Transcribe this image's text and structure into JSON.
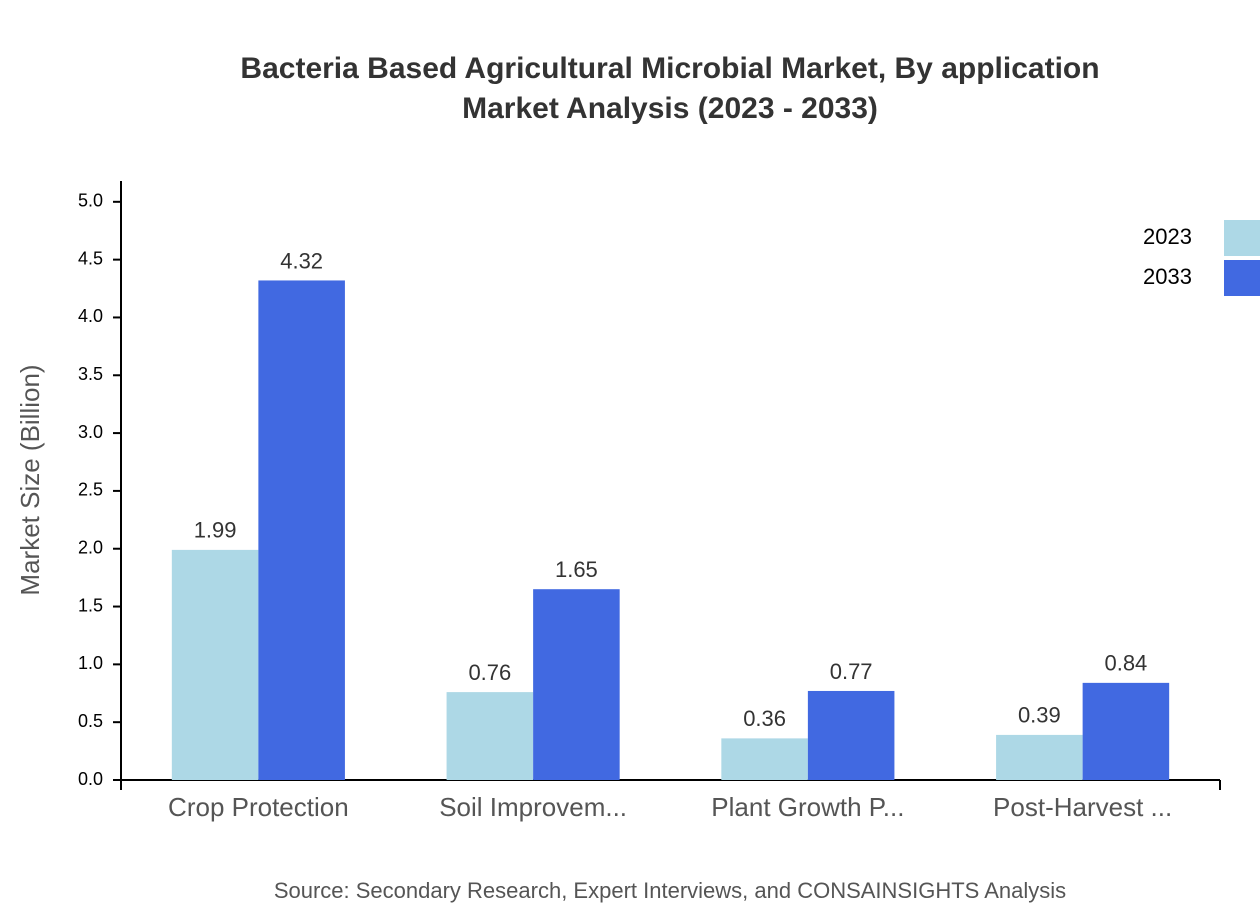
{
  "chart_data": {
    "type": "bar",
    "title": "Bacteria Based Agricultural Microbial Market, By application",
    "subtitle": "Market Analysis (2023 - 2033)",
    "y_label": "Market Size (Billion)",
    "source": "Source: Secondary Research, Expert Interviews, and CONSAINSIGHTS Analysis",
    "categories": [
      "Crop Protection",
      "Soil Improvem...",
      "Plant Growth P...",
      "Post-Harvest ..."
    ],
    "series": [
      {
        "name": "2023",
        "color": "#add8e6",
        "values": [
          1.99,
          0.76,
          0.36,
          0.39
        ]
      },
      {
        "name": "2033",
        "color": "#4169e1",
        "values": [
          4.32,
          1.65,
          0.77,
          0.84
        ]
      }
    ],
    "ylim": [
      0,
      5.18
    ],
    "yticks": [
      {
        "value": 0,
        "label": "0.0"
      },
      0.5,
      {
        "value": 1,
        "label": "1.0"
      },
      1.5,
      {
        "value": 2,
        "label": "2.0"
      },
      2.5,
      {
        "value": 3,
        "label": "3.0"
      },
      3.5,
      {
        "value": 4,
        "label": "4.0"
      },
      4.5,
      {
        "value": 5,
        "label": "5.0"
      }
    ],
    "legend": "top-right"
  }
}
